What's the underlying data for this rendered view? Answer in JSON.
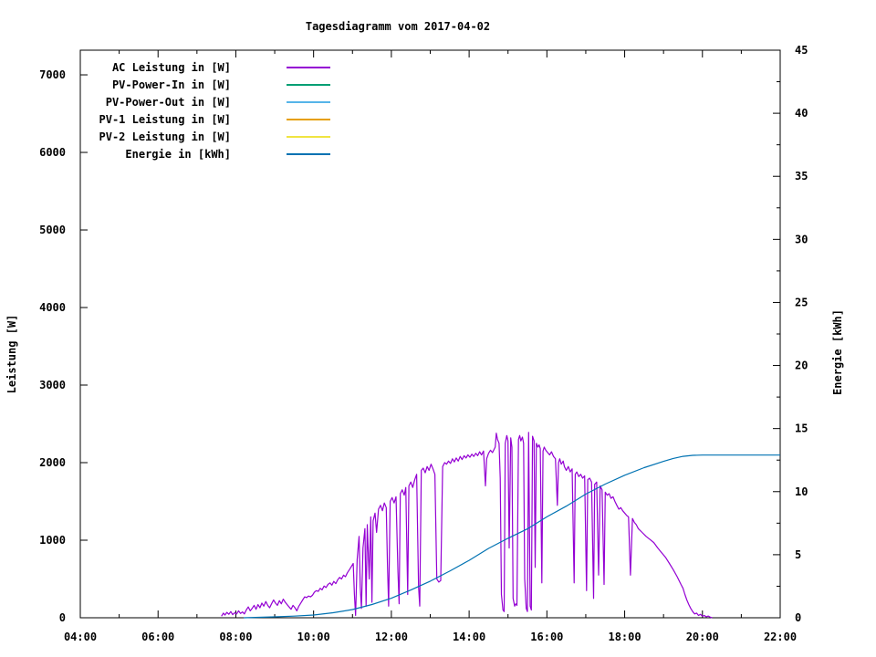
{
  "chart_data": {
    "type": "line",
    "title": "Tagesdiagramm vom 2017-04-02",
    "xlabel": "",
    "ylabel": "Leistung [W]",
    "y2label": "Energie [kWh]",
    "grid": false,
    "legend_position": "top-left-inside",
    "x_range_hours": [
      4,
      22
    ],
    "y_range": [
      0,
      7318
    ],
    "y2_range": [
      0,
      45
    ],
    "x_ticks": [
      [
        4,
        "04:00"
      ],
      [
        6,
        "06:00"
      ],
      [
        8,
        "08:00"
      ],
      [
        10,
        "10:00"
      ],
      [
        12,
        "12:00"
      ],
      [
        14,
        "14:00"
      ],
      [
        16,
        "16:00"
      ],
      [
        18,
        "18:00"
      ],
      [
        20,
        "20:00"
      ],
      [
        22,
        "22:00"
      ]
    ],
    "x_minor_hours": [
      5,
      7,
      9,
      11,
      13,
      15,
      17,
      19,
      21
    ],
    "y_ticks": [
      0,
      1000,
      2000,
      3000,
      4000,
      5000,
      6000,
      7000
    ],
    "y2_ticks": [
      0,
      5,
      10,
      15,
      20,
      25,
      30,
      35,
      40,
      45
    ],
    "y2_minor_ticks": [
      2.5,
      7.5,
      12.5,
      17.5,
      22.5,
      27.5,
      32.5,
      37.5,
      42.5
    ],
    "series": [
      {
        "id": "ac_leistung",
        "label": "AC Leistung in [W]",
        "color": "#9400d3",
        "axis": "y1",
        "points": [
          [
            7.63,
            20
          ],
          [
            7.68,
            60
          ],
          [
            7.72,
            35
          ],
          [
            7.77,
            70
          ],
          [
            7.82,
            45
          ],
          [
            7.87,
            80
          ],
          [
            7.92,
            40
          ],
          [
            7.97,
            65
          ],
          [
            8.02,
            50
          ],
          [
            8.07,
            90
          ],
          [
            8.12,
            55
          ],
          [
            8.17,
            75
          ],
          [
            8.22,
            50
          ],
          [
            8.27,
            100
          ],
          [
            8.32,
            140
          ],
          [
            8.37,
            90
          ],
          [
            8.42,
            120
          ],
          [
            8.47,
            160
          ],
          [
            8.52,
            110
          ],
          [
            8.57,
            170
          ],
          [
            8.62,
            130
          ],
          [
            8.67,
            190
          ],
          [
            8.72,
            150
          ],
          [
            8.77,
            210
          ],
          [
            8.82,
            160
          ],
          [
            8.87,
            130
          ],
          [
            8.92,
            180
          ],
          [
            8.97,
            230
          ],
          [
            9.02,
            190
          ],
          [
            9.07,
            160
          ],
          [
            9.12,
            220
          ],
          [
            9.17,
            180
          ],
          [
            9.22,
            240
          ],
          [
            9.27,
            200
          ],
          [
            9.32,
            170
          ],
          [
            9.37,
            140
          ],
          [
            9.42,
            110
          ],
          [
            9.47,
            160
          ],
          [
            9.52,
            130
          ],
          [
            9.57,
            90
          ],
          [
            9.62,
            150
          ],
          [
            9.67,
            190
          ],
          [
            9.72,
            230
          ],
          [
            9.77,
            270
          ],
          [
            9.82,
            260
          ],
          [
            9.87,
            280
          ],
          [
            9.92,
            270
          ],
          [
            9.97,
            290
          ],
          [
            10.02,
            330
          ],
          [
            10.07,
            350
          ],
          [
            10.12,
            340
          ],
          [
            10.17,
            380
          ],
          [
            10.22,
            360
          ],
          [
            10.27,
            410
          ],
          [
            10.32,
            390
          ],
          [
            10.37,
            430
          ],
          [
            10.42,
            450
          ],
          [
            10.47,
            420
          ],
          [
            10.52,
            470
          ],
          [
            10.57,
            440
          ],
          [
            10.62,
            490
          ],
          [
            10.67,
            520
          ],
          [
            10.72,
            500
          ],
          [
            10.77,
            550
          ],
          [
            10.82,
            530
          ],
          [
            10.87,
            580
          ],
          [
            10.92,
            620
          ],
          [
            10.97,
            660
          ],
          [
            11.02,
            700
          ],
          [
            11.05,
            300
          ],
          [
            11.08,
            30
          ],
          [
            11.12,
            750
          ],
          [
            11.17,
            1050
          ],
          [
            11.2,
            400
          ],
          [
            11.23,
            120
          ],
          [
            11.27,
            900
          ],
          [
            11.32,
            1150
          ],
          [
            11.35,
            150
          ],
          [
            11.38,
            1200
          ],
          [
            11.43,
            500
          ],
          [
            11.47,
            1300
          ],
          [
            11.5,
            200
          ],
          [
            11.53,
            1250
          ],
          [
            11.58,
            1350
          ],
          [
            11.62,
            1100
          ],
          [
            11.67,
            1400
          ],
          [
            11.72,
            1450
          ],
          [
            11.77,
            1380
          ],
          [
            11.82,
            1480
          ],
          [
            11.87,
            1420
          ],
          [
            11.9,
            700
          ],
          [
            11.93,
            150
          ],
          [
            11.97,
            1500
          ],
          [
            12.02,
            1550
          ],
          [
            12.07,
            1480
          ],
          [
            12.12,
            1560
          ],
          [
            12.17,
            600
          ],
          [
            12.2,
            180
          ],
          [
            12.23,
            1600
          ],
          [
            12.28,
            1650
          ],
          [
            12.33,
            1580
          ],
          [
            12.37,
            1680
          ],
          [
            12.42,
            300
          ],
          [
            12.45,
            1700
          ],
          [
            12.5,
            1750
          ],
          [
            12.55,
            1680
          ],
          [
            12.6,
            1780
          ],
          [
            12.65,
            1850
          ],
          [
            12.7,
            400
          ],
          [
            12.73,
            150
          ],
          [
            12.77,
            1900
          ],
          [
            12.82,
            1930
          ],
          [
            12.87,
            1870
          ],
          [
            12.92,
            1950
          ],
          [
            12.97,
            1900
          ],
          [
            13.02,
            1980
          ],
          [
            13.07,
            1920
          ],
          [
            13.12,
            1850
          ],
          [
            13.17,
            500
          ],
          [
            13.22,
            460
          ],
          [
            13.27,
            480
          ],
          [
            13.32,
            1950
          ],
          [
            13.37,
            2000
          ],
          [
            13.42,
            1980
          ],
          [
            13.47,
            2020
          ],
          [
            13.52,
            1990
          ],
          [
            13.57,
            2050
          ],
          [
            13.62,
            2010
          ],
          [
            13.67,
            2060
          ],
          [
            13.72,
            2020
          ],
          [
            13.77,
            2080
          ],
          [
            13.82,
            2040
          ],
          [
            13.87,
            2090
          ],
          [
            13.92,
            2060
          ],
          [
            13.97,
            2100
          ],
          [
            14.02,
            2070
          ],
          [
            14.07,
            2110
          ],
          [
            14.12,
            2080
          ],
          [
            14.17,
            2120
          ],
          [
            14.22,
            2090
          ],
          [
            14.27,
            2140
          ],
          [
            14.32,
            2100
          ],
          [
            14.37,
            2150
          ],
          [
            14.42,
            1700
          ],
          [
            14.45,
            2050
          ],
          [
            14.5,
            2120
          ],
          [
            14.55,
            2160
          ],
          [
            14.6,
            2130
          ],
          [
            14.67,
            2200
          ],
          [
            14.7,
            2380
          ],
          [
            14.73,
            2300
          ],
          [
            14.77,
            2250
          ],
          [
            14.8,
            1800
          ],
          [
            14.83,
            300
          ],
          [
            14.87,
            100
          ],
          [
            14.9,
            80
          ],
          [
            14.93,
            2250
          ],
          [
            14.97,
            2350
          ],
          [
            15.0,
            2280
          ],
          [
            15.03,
            900
          ],
          [
            15.07,
            2320
          ],
          [
            15.1,
            2200
          ],
          [
            15.13,
            250
          ],
          [
            15.17,
            150
          ],
          [
            15.2,
            180
          ],
          [
            15.23,
            160
          ],
          [
            15.27,
            2300
          ],
          [
            15.3,
            2350
          ],
          [
            15.33,
            2280
          ],
          [
            15.37,
            2330
          ],
          [
            15.4,
            2250
          ],
          [
            15.43,
            500
          ],
          [
            15.47,
            120
          ],
          [
            15.5,
            80
          ],
          [
            15.53,
            2390
          ],
          [
            15.57,
            150
          ],
          [
            15.6,
            100
          ],
          [
            15.63,
            2340
          ],
          [
            15.67,
            2280
          ],
          [
            15.7,
            650
          ],
          [
            15.73,
            2250
          ],
          [
            15.77,
            2200
          ],
          [
            15.8,
            2230
          ],
          [
            15.83,
            2180
          ],
          [
            15.87,
            450
          ],
          [
            15.9,
            2150
          ],
          [
            15.93,
            2200
          ],
          [
            15.97,
            2160
          ],
          [
            16.02,
            2130
          ],
          [
            16.07,
            2100
          ],
          [
            16.12,
            2140
          ],
          [
            16.17,
            2080
          ],
          [
            16.22,
            2050
          ],
          [
            16.27,
            1450
          ],
          [
            16.3,
            2000
          ],
          [
            16.33,
            2050
          ],
          [
            16.37,
            1980
          ],
          [
            16.42,
            2020
          ],
          [
            16.45,
            1950
          ],
          [
            16.5,
            1900
          ],
          [
            16.55,
            1950
          ],
          [
            16.6,
            1880
          ],
          [
            16.65,
            1920
          ],
          [
            16.7,
            450
          ],
          [
            16.73,
            1850
          ],
          [
            16.77,
            1880
          ],
          [
            16.82,
            1820
          ],
          [
            16.87,
            1850
          ],
          [
            16.92,
            1800
          ],
          [
            16.97,
            1830
          ],
          [
            17.02,
            350
          ],
          [
            17.05,
            1780
          ],
          [
            17.1,
            1800
          ],
          [
            17.15,
            1750
          ],
          [
            17.2,
            250
          ],
          [
            17.23,
            1720
          ],
          [
            17.28,
            1750
          ],
          [
            17.33,
            550
          ],
          [
            17.37,
            1700
          ],
          [
            17.42,
            1650
          ],
          [
            17.47,
            430
          ],
          [
            17.5,
            1620
          ],
          [
            17.55,
            1580
          ],
          [
            17.6,
            1600
          ],
          [
            17.65,
            1540
          ],
          [
            17.7,
            1560
          ],
          [
            17.75,
            1500
          ],
          [
            17.8,
            1450
          ],
          [
            17.85,
            1400
          ],
          [
            17.9,
            1420
          ],
          [
            17.95,
            1380
          ],
          [
            18.0,
            1350
          ],
          [
            18.05,
            1320
          ],
          [
            18.1,
            1300
          ],
          [
            18.15,
            550
          ],
          [
            18.2,
            1280
          ],
          [
            18.25,
            1230
          ],
          [
            18.3,
            1200
          ],
          [
            18.35,
            1150
          ],
          [
            18.45,
            1100
          ],
          [
            18.55,
            1050
          ],
          [
            18.65,
            1010
          ],
          [
            18.75,
            970
          ],
          [
            18.85,
            900
          ],
          [
            18.95,
            840
          ],
          [
            19.05,
            780
          ],
          [
            19.15,
            700
          ],
          [
            19.25,
            620
          ],
          [
            19.35,
            530
          ],
          [
            19.45,
            430
          ],
          [
            19.5,
            380
          ],
          [
            19.55,
            300
          ],
          [
            19.6,
            230
          ],
          [
            19.65,
            170
          ],
          [
            19.7,
            120
          ],
          [
            19.75,
            80
          ],
          [
            19.8,
            50
          ],
          [
            19.85,
            60
          ],
          [
            19.9,
            30
          ],
          [
            19.95,
            45
          ],
          [
            20.0,
            20
          ],
          [
            20.05,
            30
          ],
          [
            20.1,
            12
          ],
          [
            20.15,
            22
          ],
          [
            20.2,
            8
          ],
          [
            20.25,
            0
          ]
        ]
      },
      {
        "id": "pv_power_in",
        "label": "PV-Power-In in [W]",
        "color": "#009e73",
        "axis": "y1",
        "points": []
      },
      {
        "id": "pv_power_out",
        "label": "PV-Power-Out in [W]",
        "color": "#56b4e9",
        "axis": "y1",
        "points": []
      },
      {
        "id": "pv1_leistung",
        "label": "PV-1 Leistung in [W]",
        "color": "#e69f00",
        "axis": "y1",
        "points": []
      },
      {
        "id": "pv2_leistung",
        "label": "PV-2 Leistung in [W]",
        "color": "#f0e442",
        "axis": "y1",
        "points": []
      },
      {
        "id": "energie",
        "label": "Energie in [kWh]",
        "color": "#0072b2",
        "axis": "y2",
        "points": [
          [
            8.2,
            0
          ],
          [
            8.5,
            0.03
          ],
          [
            9.0,
            0.07
          ],
          [
            9.5,
            0.13
          ],
          [
            10.0,
            0.22
          ],
          [
            10.5,
            0.4
          ],
          [
            11.0,
            0.65
          ],
          [
            11.5,
            1.05
          ],
          [
            12.0,
            1.55
          ],
          [
            12.5,
            2.2
          ],
          [
            13.0,
            2.9
          ],
          [
            13.5,
            3.7
          ],
          [
            14.0,
            4.55
          ],
          [
            14.5,
            5.5
          ],
          [
            15.0,
            6.3
          ],
          [
            15.5,
            7.05
          ],
          [
            16.0,
            8.0
          ],
          [
            16.5,
            8.85
          ],
          [
            17.0,
            9.8
          ],
          [
            17.5,
            10.6
          ],
          [
            18.0,
            11.3
          ],
          [
            18.5,
            11.9
          ],
          [
            19.0,
            12.4
          ],
          [
            19.25,
            12.63
          ],
          [
            19.5,
            12.8
          ],
          [
            19.75,
            12.88
          ],
          [
            20.0,
            12.9
          ],
          [
            21.0,
            12.9
          ],
          [
            22.0,
            12.9
          ]
        ]
      }
    ]
  }
}
